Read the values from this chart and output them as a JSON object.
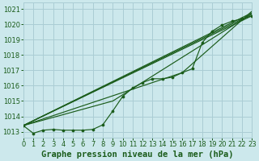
{
  "title": "Graphe pression niveau de la mer (hPa)",
  "background_color": "#cce8ec",
  "grid_color": "#aacdd4",
  "line_color": "#1a5c1a",
  "marker_color": "#1a5c1a",
  "xlabel_color": "#1a5c1a",
  "xlim": [
    0,
    23
  ],
  "ylim": [
    1012.6,
    1021.4
  ],
  "yticks": [
    1013,
    1014,
    1015,
    1016,
    1017,
    1018,
    1019,
    1020,
    1021
  ],
  "xticks": [
    0,
    1,
    2,
    3,
    4,
    5,
    6,
    7,
    8,
    9,
    10,
    11,
    12,
    13,
    14,
    15,
    16,
    17,
    18,
    19,
    20,
    21,
    22,
    23
  ],
  "marker_series": [
    1013.4,
    1012.9,
    1013.1,
    1013.15,
    1013.1,
    1013.1,
    1013.1,
    1013.15,
    1013.45,
    1014.35,
    1015.3,
    1015.85,
    1016.2,
    1016.45,
    1016.45,
    1016.55,
    1016.85,
    1017.1,
    1018.8,
    1019.55,
    1019.95,
    1020.2,
    1020.35,
    1020.55
  ],
  "straight_lines": [
    [
      [
        0,
        23
      ],
      [
        1013.4,
        1020.55
      ]
    ],
    [
      [
        0,
        23
      ],
      [
        1013.4,
        1020.65
      ]
    ],
    [
      [
        0,
        23
      ],
      [
        1013.4,
        1020.75
      ]
    ],
    [
      [
        0,
        16
      ],
      [
        1013.4,
        1016.85
      ]
    ],
    [
      [
        16,
        23
      ],
      [
        1016.85,
        1020.85
      ]
    ]
  ],
  "extra_lines": [
    [
      0,
      9,
      23
    ],
    [
      1013.4,
      1015.0,
      1020.7
    ]
  ],
  "title_fontsize": 7.5,
  "tick_fontsize": 6.0
}
